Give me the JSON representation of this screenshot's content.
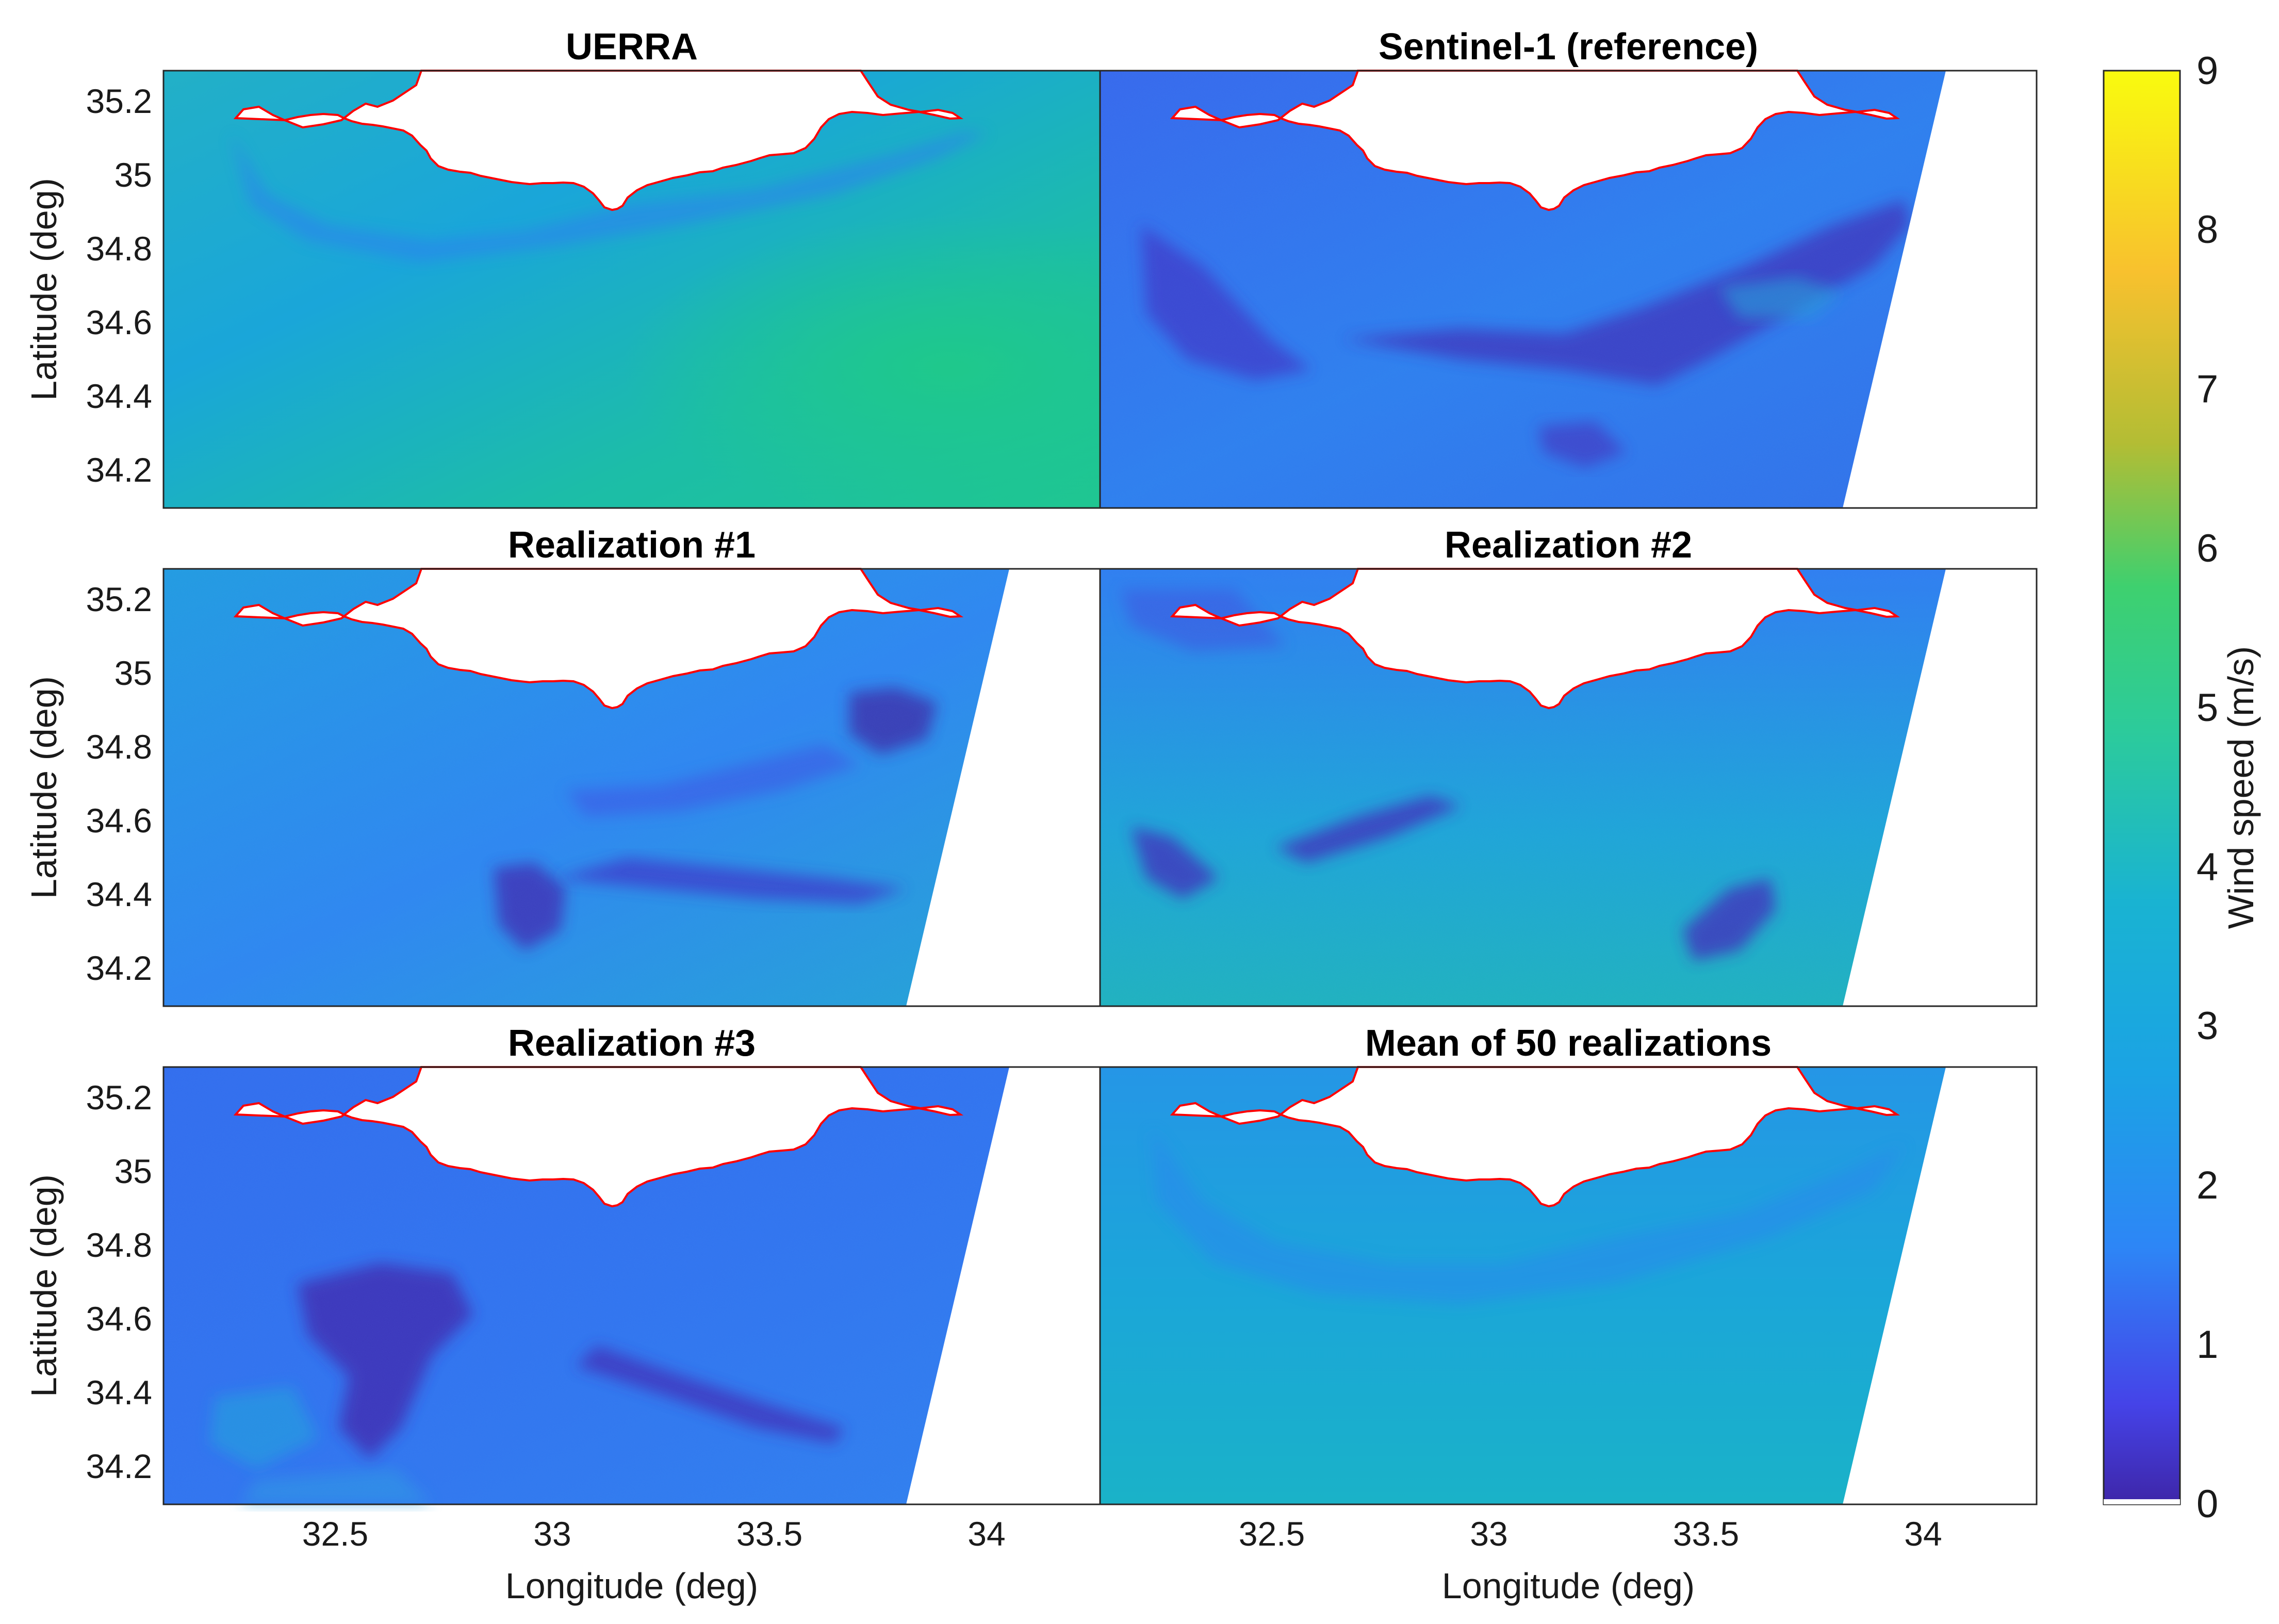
{
  "figure": {
    "panels": [
      {
        "id": "uerra",
        "title": "UERRA",
        "swath": false,
        "style": "smooth"
      },
      {
        "id": "sentinel",
        "title": "Sentinel-1 (reference)",
        "swath": true,
        "style": "noisy"
      },
      {
        "id": "real1",
        "title": "Realization #1",
        "swath": true,
        "style": "noisy"
      },
      {
        "id": "real2",
        "title": "Realization #2",
        "swath": true,
        "style": "noisy"
      },
      {
        "id": "real3",
        "title": "Realization #3",
        "swath": true,
        "style": "noisy"
      },
      {
        "id": "mean50",
        "title": "Mean of 50 realizations",
        "swath": true,
        "style": "smooth"
      }
    ],
    "y_ticks": [
      "35.2",
      "35",
      "34.8",
      "34.6",
      "34.4",
      "34.2"
    ],
    "x_ticks": [
      "32.5",
      "33",
      "33.5",
      "34"
    ],
    "y_label": "Latitude (deg)",
    "x_label": "Longitude (deg)"
  },
  "colorbar": {
    "label": "Wind speed (m/s)",
    "ticks": [
      "9",
      "8",
      "7",
      "6",
      "5",
      "4",
      "3",
      "2",
      "1",
      "0"
    ]
  },
  "chart_data": {
    "type": "heatmap",
    "title": "",
    "xlabel": "Longitude (deg)",
    "ylabel": "Latitude (deg)",
    "xlim": [
      32.1,
      34.26
    ],
    "ylim": [
      34.1,
      35.28
    ],
    "colorbar_range": [
      0,
      9
    ],
    "colorbar_label": "Wind speed (m/s)",
    "colormap": [
      "#3e26a8",
      "#4543e8",
      "#2d86f6",
      "#19b3d2",
      "#2ccb9b",
      "#5cc863",
      "#b3bd34",
      "#f8c12e",
      "#f9fb0e"
    ],
    "coastline_color": "#ff0000",
    "panels": [
      {
        "title": "UERRA",
        "typical_range": [
          1.5,
          5.5
        ]
      },
      {
        "title": "Sentinel-1 (reference)",
        "typical_range": [
          0.2,
          4
        ]
      },
      {
        "title": "Realization #1",
        "typical_range": [
          0.3,
          4.5
        ]
      },
      {
        "title": "Realization #2",
        "typical_range": [
          0.3,
          4.5
        ]
      },
      {
        "title": "Realization #3",
        "typical_range": [
          0.2,
          4
        ]
      },
      {
        "title": "Mean of 50 realizations",
        "typical_range": [
          2,
          4
        ]
      }
    ]
  }
}
